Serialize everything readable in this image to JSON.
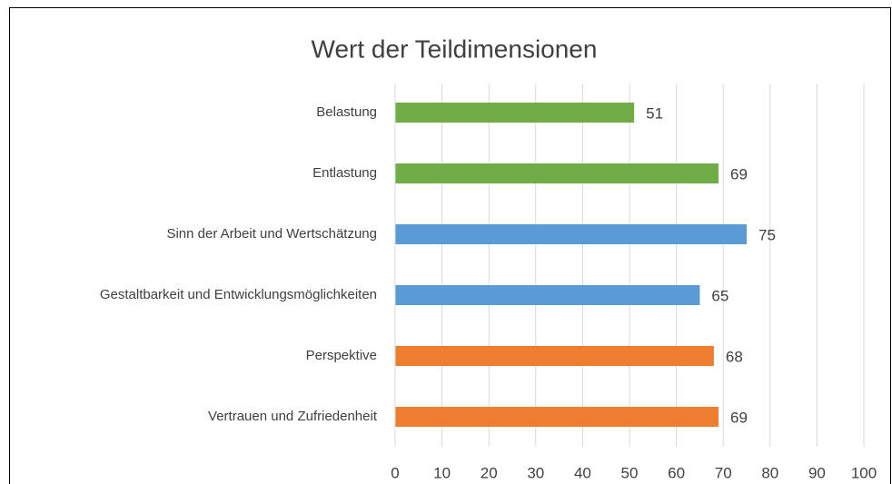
{
  "chart_data": {
    "type": "barh",
    "title": "Wert der Teildimensionen",
    "categories": [
      "Belastung",
      "Entlastung",
      "Sinn der Arbeit und Wertschätzung",
      "Gestaltbarkeit und Entwicklungsmöglichkeiten",
      "Perspektive",
      "Vertrauen und Zufriedenheit"
    ],
    "values": [
      51,
      69,
      75,
      65,
      68,
      69
    ],
    "colors": [
      "#70ad47",
      "#70ad47",
      "#5b9bd5",
      "#5b9bd5",
      "#ed7d31",
      "#ed7d31"
    ],
    "xlim": [
      0,
      100
    ],
    "xticks": [
      0,
      10,
      20,
      30,
      40,
      50,
      60,
      70,
      80,
      90,
      100
    ],
    "grid": true
  }
}
